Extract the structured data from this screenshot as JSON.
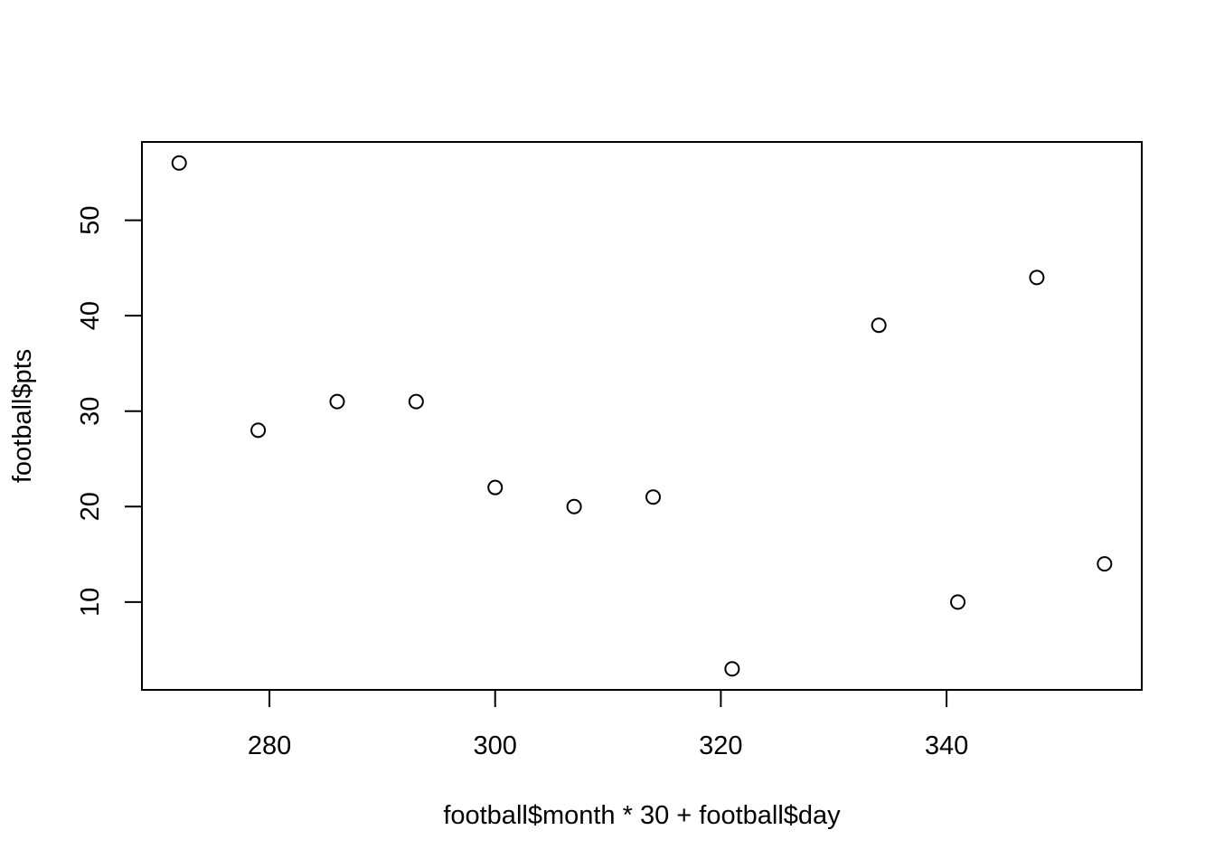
{
  "chart_data": {
    "type": "scatter",
    "xlabel": "football$month * 30 + football$day",
    "ylabel": "football$pts",
    "xlim": [
      268.7,
      357.3
    ],
    "ylim": [
      0.8,
      58.2
    ],
    "xticks": [
      280,
      300,
      320,
      340
    ],
    "yticks": [
      10,
      20,
      30,
      40,
      50
    ],
    "grid": false,
    "marker": "open-circle",
    "points": [
      {
        "x": 272,
        "y": 56
      },
      {
        "x": 279,
        "y": 28
      },
      {
        "x": 286,
        "y": 31
      },
      {
        "x": 293,
        "y": 31
      },
      {
        "x": 300,
        "y": 22
      },
      {
        "x": 307,
        "y": 20
      },
      {
        "x": 314,
        "y": 21
      },
      {
        "x": 321,
        "y": 3
      },
      {
        "x": 334,
        "y": 39
      },
      {
        "x": 341,
        "y": 10
      },
      {
        "x": 348,
        "y": 44
      },
      {
        "x": 354,
        "y": 14
      }
    ]
  }
}
